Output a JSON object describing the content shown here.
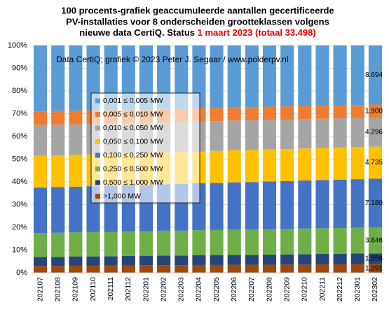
{
  "chart_data": {
    "type": "stacked_bar_100",
    "title_lines": [
      "100 procents-grafiek geaccumuleerde aantallen gecertificeerde",
      "PV-installaties voor 8 onderscheiden grootteklassen volgens",
      "nieuwe data CertiQ. Status "
    ],
    "title_highlight": "1 maart 2023 (totaal 33.498)",
    "annotation": "Data CertiQ; grafiek © 2023 Peter J. Segaar / www.polderpv.nl",
    "categories": [
      "202107",
      "202108",
      "202109",
      "202110",
      "202111",
      "202112",
      "202201",
      "202202",
      "202203",
      "202204",
      "202205",
      "202206",
      "202207",
      "202208",
      "202209",
      "202210",
      "202211",
      "202212",
      "202301",
      "202302"
    ],
    "series": [
      {
        "name": ">1,000 MW",
        "color": "#9e480e",
        "values": [
          3.0,
          3.0,
          3.1,
          3.1,
          3.2,
          3.2,
          3.3,
          3.3,
          3.3,
          3.4,
          3.4,
          3.5,
          3.5,
          3.5,
          3.6,
          3.6,
          3.7,
          3.7,
          3.8,
          3.8
        ]
      },
      {
        "name": "0,500 ≤  1,000 MW",
        "color": "#264478",
        "values": [
          4.0,
          4.0,
          4.1,
          4.1,
          4.1,
          4.2,
          4.2,
          4.3,
          4.3,
          4.3,
          4.4,
          4.4,
          4.4,
          4.5,
          4.5,
          4.6,
          4.6,
          4.6,
          4.7,
          4.7
        ]
      },
      {
        "name": "0,250 ≤  0,500 MW",
        "color": "#70ad47",
        "values": [
          10.5,
          10.6,
          10.6,
          10.7,
          10.7,
          10.8,
          10.8,
          10.9,
          10.9,
          11.0,
          11.0,
          11.1,
          11.1,
          11.2,
          11.2,
          11.3,
          11.3,
          11.4,
          11.4,
          11.5
        ]
      },
      {
        "name": "0,100 ≤  0,250 MW",
        "color": "#4472c4",
        "values": [
          20.0,
          20.1,
          20.1,
          20.2,
          20.3,
          20.4,
          20.4,
          20.5,
          20.6,
          20.7,
          20.7,
          20.8,
          20.9,
          21.0,
          21.0,
          21.1,
          21.2,
          21.3,
          21.3,
          21.4
        ]
      },
      {
        "name": "0,050 ≤  0,100 MW",
        "color": "#ffc000",
        "values": [
          14.0,
          14.0,
          14.0,
          14.0,
          14.0,
          14.0,
          14.0,
          14.0,
          14.0,
          14.0,
          14.1,
          14.1,
          14.1,
          14.1,
          14.1,
          14.1,
          14.1,
          14.1,
          14.1,
          14.1
        ]
      },
      {
        "name": "0,010 ≤  0,050 MW",
        "color": "#a5a5a5",
        "values": [
          13.5,
          13.5,
          13.4,
          13.4,
          13.4,
          13.3,
          13.3,
          13.2,
          13.2,
          13.2,
          13.1,
          13.1,
          13.1,
          13.0,
          13.0,
          12.9,
          12.9,
          12.9,
          12.8,
          12.8
        ]
      },
      {
        "name": "0,005 ≤  0,010 MW",
        "color": "#ed7d31",
        "values": [
          6.0,
          6.0,
          6.0,
          6.0,
          5.9,
          5.9,
          5.9,
          5.9,
          5.9,
          5.9,
          5.8,
          5.8,
          5.8,
          5.8,
          5.8,
          5.8,
          5.7,
          5.7,
          5.7,
          5.7
        ]
      },
      {
        "name": "0,001 ≤  0,005 MW",
        "color": "#5b9bd5",
        "values": [
          29.0,
          28.8,
          28.7,
          28.5,
          28.4,
          28.2,
          28.1,
          27.9,
          27.8,
          27.5,
          27.5,
          27.2,
          27.1,
          26.9,
          26.8,
          26.6,
          26.5,
          26.3,
          26.2,
          26.0
        ]
      }
    ],
    "last_bar_labels": [
      "1.291",
      "1.556",
      "3.846",
      "7.180",
      "4.735",
      "4.296",
      "1.900",
      "8.694"
    ],
    "ylim": [
      0,
      100
    ],
    "yticks": [
      {
        "value": 0,
        "label": "0%"
      },
      {
        "value": 10,
        "label": "10%"
      },
      {
        "value": 20,
        "label": "20%"
      },
      {
        "value": 30,
        "label": "30%"
      },
      {
        "value": 40,
        "label": "40%"
      },
      {
        "value": 50,
        "label": "50%"
      },
      {
        "value": 60,
        "label": "60%"
      },
      {
        "value": 70,
        "label": "70%"
      },
      {
        "value": 80,
        "label": "80%"
      },
      {
        "value": 90,
        "label": "90%"
      },
      {
        "value": 100,
        "label": "100%"
      }
    ],
    "grid": true
  }
}
